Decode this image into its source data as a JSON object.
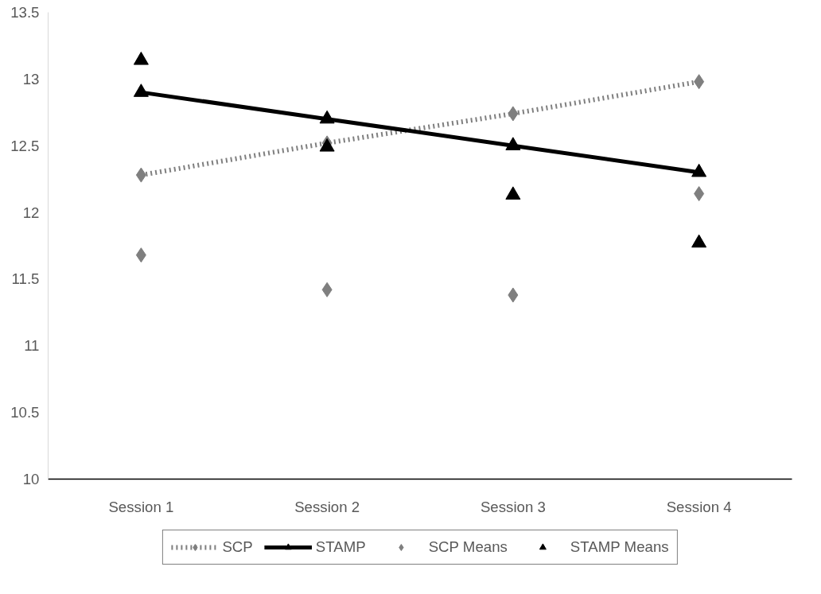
{
  "chart_data": {
    "type": "line",
    "categories": [
      "Session 1",
      "Session 2",
      "Session 3",
      "Session 4"
    ],
    "ylim": [
      10,
      13.5
    ],
    "yticks": [
      10,
      10.5,
      11,
      11.5,
      12,
      12.5,
      13,
      13.5
    ],
    "legend": "bottom",
    "series": [
      {
        "name": "SCP",
        "color": "#7f7f7f",
        "marker": "diamond",
        "line_style": "dotted",
        "values": [
          12.28,
          12.52,
          12.74,
          12.98
        ]
      },
      {
        "name": "STAMP",
        "color": "#000000",
        "marker": "triangle",
        "line_style": "solid",
        "values": [
          12.9,
          12.7,
          12.5,
          12.3
        ]
      },
      {
        "name": "SCP Means",
        "type": "scatter",
        "color": "#7f7f7f",
        "marker": "diamond",
        "values": [
          11.68,
          11.42,
          11.38,
          12.14
        ]
      },
      {
        "name": "STAMP Means",
        "type": "scatter",
        "color": "#000000",
        "marker": "triangle",
        "values": [
          13.14,
          12.49,
          12.13,
          11.77
        ]
      }
    ]
  }
}
